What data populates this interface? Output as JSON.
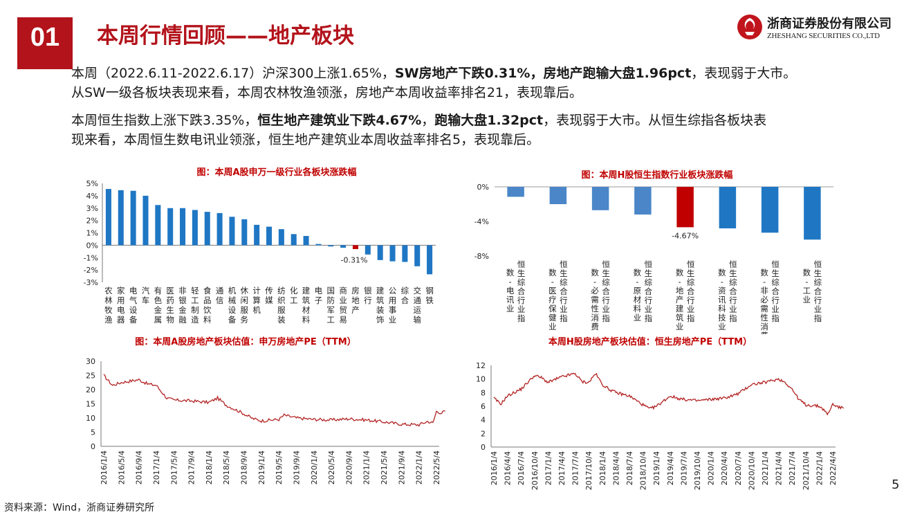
{
  "header": {
    "section_number": "01",
    "title": "本周行情回顾——地产板块",
    "logo_cn": "浙商证券股份有限公司",
    "logo_en": "ZHESHANG SECURITIES CO.,LTD"
  },
  "paragraphs": {
    "p1_a": "本周（2022.6.11-2022.6.17）沪深300上涨1.65%，",
    "p1_b": "SW房地产下跌0.31%，房地产跑输大盘1.96pct",
    "p1_c": "，表现弱于大市。",
    "p1_d": "从SW一级各板块表现来看，本周农林牧渔领涨，房地产本周收益率排名21，表现靠后。",
    "p2_a": "本周恒生指数上涨下跌3.35%，",
    "p2_b": "恒生地产建筑业下跌4.67%",
    "p2_c": "，",
    "p2_d": "跑输大盘1.32pct",
    "p2_e": "，表现弱于大市。从恒生综指各板块表",
    "p2_f": "现来看，本周恒生数电讯业领涨，恒生地产建筑业本周收益率排名5，表现靠后。"
  },
  "footer": {
    "source": "资料来源：Wind，浙商证券研究所",
    "page_number": "5"
  },
  "colors": {
    "brand_red": "#b3131b",
    "bar_blue": "#1f77c4",
    "bar_highlight": "#c00000",
    "line_red": "#b22222"
  },
  "chart_data": [
    {
      "id": "sw",
      "type": "bar",
      "title": "图：本周A股申万一级行业各板块涨跌幅",
      "categories": [
        "农林牧渔",
        "家用电器",
        "电气设备",
        "汽车",
        "有色金属",
        "医药生物",
        "非银金融",
        "轻工制造",
        "食品饮料",
        "通信",
        "机械设备",
        "休闲服务",
        "计算机",
        "传媒",
        "纺织服装",
        "化工",
        "建筑材料",
        "电子",
        "国防军工",
        "商业贸易",
        "房地产",
        "银行",
        "建筑装饰",
        "公用事业",
        "综合",
        "交通运输",
        "钢铁"
      ],
      "values": [
        4.55,
        4.45,
        4.4,
        4.0,
        3.25,
        3.0,
        3.0,
        2.85,
        2.7,
        2.6,
        2.3,
        2.1,
        1.65,
        1.5,
        1.3,
        0.9,
        0.75,
        0.1,
        -0.1,
        -0.2,
        -0.31,
        -0.75,
        -1.2,
        -1.3,
        -1.35,
        -1.7,
        -2.35
      ],
      "highlight_index": 20,
      "data_labels": [
        {
          "index": 20,
          "text": "-0.31%"
        }
      ],
      "ylim": [
        -3,
        5
      ],
      "yticks": [
        "5%",
        "4%",
        "3%",
        "2%",
        "1%",
        "0%",
        "-1%",
        "-2%",
        "-3%"
      ]
    },
    {
      "id": "hs",
      "type": "bar",
      "title": "图：本周H股恒生指数行业板块涨跌幅",
      "categories": [
        "恒生综合行业指数-电讯业",
        "恒生综合行业指数-医疗保健业",
        "恒生综合行业指数-必需性消费",
        "恒生综合行业指数-原材料业",
        "恒生综合行业指数-地产建筑业",
        "恒生综合行业指数-资讯科技业",
        "恒生综合行业指数-非必需性消费",
        "恒生综合行业指数-工业"
      ],
      "values": [
        -1.15,
        -2.0,
        -2.7,
        -3.2,
        -4.67,
        -4.8,
        -5.3,
        -6.1
      ],
      "highlight_index": 4,
      "data_labels": [
        {
          "index": 4,
          "text": "-4.67%"
        }
      ],
      "ylim": [
        -8,
        0
      ],
      "yticks": [
        "0%",
        "-4%",
        "-8%"
      ]
    },
    {
      "id": "swpe",
      "type": "line",
      "title": "图：本周A股房地产板块估值：申万房地产PE（TTM）",
      "ylim": [
        0,
        30
      ],
      "yticks": [
        "30",
        "25",
        "20",
        "15",
        "10",
        "5",
        "0"
      ],
      "xticks": [
        "2016/1/4",
        "2016/5/4",
        "2016/9/4",
        "2017/1/4",
        "2017/5/4",
        "2017/9/4",
        "2018/1/4",
        "2018/5/4",
        "2018/9/4",
        "2019/1/4",
        "2019/5/4",
        "2019/9/4",
        "2020/1/4",
        "2020/5/4",
        "2020/9/4",
        "2021/1/4",
        "2021/5/4",
        "2021/9/4",
        "2022/1/4",
        "2022/5/4"
      ],
      "anchors": [
        [
          0,
          25
        ],
        [
          0.5,
          21.5
        ],
        [
          1,
          22.5
        ],
        [
          2,
          23.5
        ],
        [
          2.5,
          22
        ],
        [
          3,
          21.5
        ],
        [
          3.6,
          17
        ],
        [
          4,
          16.3
        ],
        [
          5,
          16
        ],
        [
          6,
          15.5
        ],
        [
          6.5,
          17
        ],
        [
          7,
          14.5
        ],
        [
          8,
          11.5
        ],
        [
          8.5,
          9.8
        ],
        [
          9,
          9
        ],
        [
          10,
          9.5
        ],
        [
          10.3,
          11
        ],
        [
          11,
          10
        ],
        [
          12,
          9.5
        ],
        [
          13,
          9.3
        ],
        [
          14,
          9.7
        ],
        [
          15,
          9.3
        ],
        [
          16,
          8.6
        ],
        [
          17,
          7.8
        ],
        [
          18,
          7.6
        ],
        [
          18.5,
          8.8
        ],
        [
          18.8,
          8.2
        ],
        [
          19,
          12.3
        ],
        [
          19.3,
          11.8
        ],
        [
          19.5,
          12.5
        ]
      ]
    },
    {
      "id": "hspe",
      "type": "line",
      "title": "本周H股房地产板块估值：恒生房地产PE（TTM）",
      "ylim": [
        0,
        12
      ],
      "yticks": [
        "12",
        "10",
        "8",
        "6",
        "4",
        "2",
        "0"
      ],
      "xticks": [
        "2016/1/4",
        "2016/4/4",
        "2016/7/4",
        "2016/10/4",
        "2017/1/4",
        "2017/4/4",
        "2017/7/4",
        "2017/10/4",
        "2018/1/4",
        "2018/4/4",
        "2018/7/4",
        "2018/10/4",
        "2019/1/4",
        "2019/4/4",
        "2019/7/4",
        "2019/10/4",
        "2020/1/4",
        "2020/4/4",
        "2020/7/4",
        "2020/10/4",
        "2021/1/4",
        "2021/4/4",
        "2021/7/4",
        "2021/10/4",
        "2022/1/4",
        "2022/4/4"
      ],
      "anchors": [
        [
          0,
          7.2
        ],
        [
          0.5,
          6.3
        ],
        [
          1,
          7.5
        ],
        [
          2,
          8.5
        ],
        [
          3,
          10.5
        ],
        [
          3.5,
          10.2
        ],
        [
          4,
          9.5
        ],
        [
          5,
          10.3
        ],
        [
          6,
          10.8
        ],
        [
          6.5,
          9.6
        ],
        [
          7,
          9.5
        ],
        [
          7.5,
          10.8
        ],
        [
          8,
          9.2
        ],
        [
          8.5,
          8.5
        ],
        [
          9,
          8
        ],
        [
          10,
          7.5
        ],
        [
          11,
          6.2
        ],
        [
          11.5,
          5.6
        ],
        [
          12,
          6
        ],
        [
          13,
          7.5
        ],
        [
          13.5,
          7.2
        ],
        [
          14,
          7
        ],
        [
          15,
          6.8
        ],
        [
          16,
          7
        ],
        [
          17,
          7.2
        ],
        [
          18,
          7.8
        ],
        [
          19,
          9.2
        ],
        [
          20,
          9.5
        ],
        [
          21,
          10
        ],
        [
          21.5,
          9.5
        ],
        [
          22,
          8.5
        ],
        [
          22.5,
          7
        ],
        [
          23,
          6.2
        ],
        [
          24,
          6
        ],
        [
          24.4,
          5.4
        ],
        [
          24.6,
          4.7
        ],
        [
          25,
          6.3
        ],
        [
          25.5,
          5.8
        ],
        [
          25.8,
          5.7
        ]
      ]
    }
  ]
}
